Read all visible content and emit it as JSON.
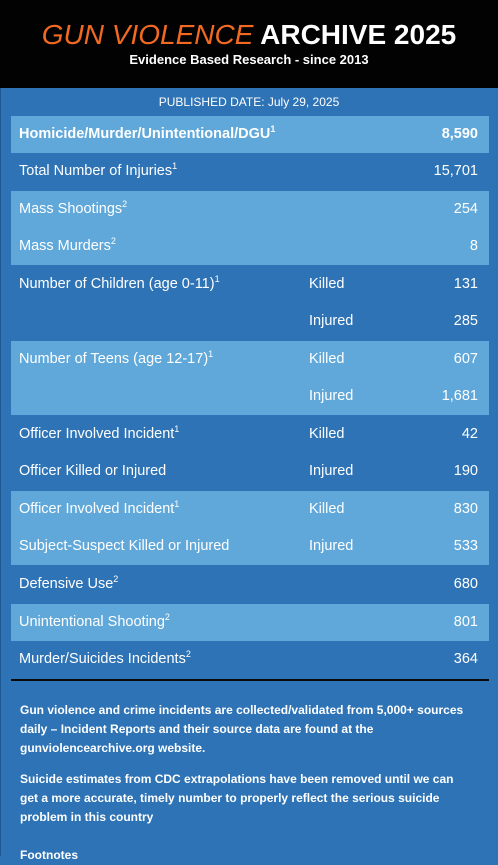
{
  "header": {
    "title_part1": "GUN VIOLENCE",
    "title_part2": "ARCHIVE 2025",
    "subtitle": "Evidence Based Research - since 2013"
  },
  "published": "PUBLISHED DATE: July 29, 2025",
  "rows": {
    "homicide": {
      "label": "Homicide/Murder/Unintentional/DGU",
      "sup": "1",
      "value": "8,590"
    },
    "injuries": {
      "label": "Total Number of Injuries",
      "sup": "1",
      "value": "15,701"
    },
    "mass_shootings": {
      "label": "Mass Shootings",
      "sup": "2",
      "value": "254"
    },
    "mass_murders": {
      "label": "Mass Murders",
      "sup": "2",
      "value": "8"
    },
    "children_killed": {
      "label": "Number of Children (age 0-11)",
      "sup": "1",
      "kind": "Killed",
      "value": "131"
    },
    "children_injured": {
      "kind": "Injured",
      "value": "285"
    },
    "teens_killed": {
      "label": "Number of Teens (age 12-17)",
      "sup": "1",
      "kind": "Killed",
      "value": "607"
    },
    "teens_injured": {
      "kind": "Injured",
      "value": "1,681"
    },
    "officer_incident_killed": {
      "label": "Officer Involved Incident",
      "sup": "1",
      "kind": "Killed",
      "value": "42"
    },
    "officer_killed_injured": {
      "label": "Officer Killed or Injured",
      "kind": "Injured",
      "value": "190"
    },
    "officer_incident2_killed": {
      "label": "Officer Involved Incident",
      "sup": "1",
      "kind": "Killed",
      "value": "830"
    },
    "subject_suspect": {
      "label": "Subject-Suspect Killed or Injured",
      "kind": "Injured",
      "value": "533"
    },
    "defensive_use": {
      "label": "Defensive Use",
      "sup": "2",
      "value": "680"
    },
    "unintentional": {
      "label": "Unintentional Shooting",
      "sup": "2",
      "value": "801"
    },
    "murder_suicides": {
      "label": "Murder/Suicides Incidents",
      "sup": "2",
      "value": "364"
    }
  },
  "notes": {
    "note1": "Gun violence and crime incidents are collected/validated from 5,000+ sources daily – Incident Reports and their source data are found at the gunviolencearchive.org website.",
    "note2": "Suicide estimates from CDC extrapolations have been removed until we can get a more accurate, timely number to properly reflect the serious suicide problem in this country",
    "footnotes_heading": "Footnotes"
  }
}
